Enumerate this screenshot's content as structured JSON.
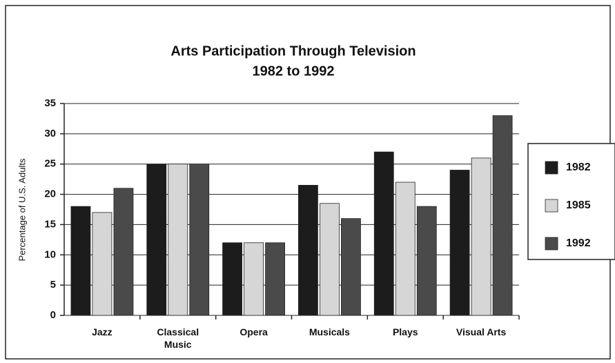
{
  "chart_data": {
    "type": "bar",
    "title": "Arts Participation Through Television",
    "subtitle": "1982 to 1992",
    "y_label": "Percentage of U.S. Adults",
    "categories": [
      "Jazz",
      "Classical Music",
      "Opera",
      "Musicals",
      "Plays",
      "Visual Arts"
    ],
    "series": [
      {
        "name": "1982",
        "color": "#1c1c1c",
        "values": [
          18,
          25,
          12,
          21.5,
          27,
          24
        ]
      },
      {
        "name": "1985",
        "color": "#d6d6d6",
        "values": [
          17,
          25,
          12,
          18.5,
          22,
          26
        ]
      },
      {
        "name": "1992",
        "color": "#4a4a4a",
        "values": [
          21,
          25,
          12,
          16,
          18,
          33
        ]
      }
    ],
    "ylim": [
      0,
      35
    ],
    "yticks": [
      0,
      5,
      10,
      15,
      20,
      25,
      30,
      35
    ],
    "grid": true,
    "legend": "right"
  }
}
